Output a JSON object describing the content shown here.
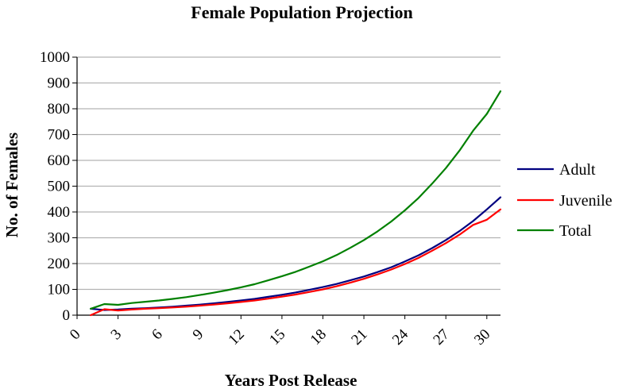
{
  "chart_data": {
    "type": "line",
    "title": "Female Population Projection",
    "xlabel": "Years Post Release",
    "ylabel": "No. of Females",
    "xlim": [
      0,
      31
    ],
    "ylim": [
      0,
      1000
    ],
    "x_ticks": [
      "0",
      "3",
      "6",
      "9",
      "12",
      "15",
      "18",
      "21",
      "24",
      "27",
      "30"
    ],
    "y_ticks": [
      "0",
      "100",
      "200",
      "300",
      "400",
      "500",
      "600",
      "700",
      "800",
      "900",
      "1000"
    ],
    "grid": true,
    "legend_position": "right",
    "x": [
      1,
      2,
      3,
      4,
      5,
      6,
      7,
      8,
      9,
      10,
      11,
      12,
      13,
      14,
      15,
      16,
      17,
      18,
      19,
      20,
      21,
      22,
      23,
      24,
      25,
      26,
      27,
      28,
      29,
      30,
      31
    ],
    "series": [
      {
        "name": "Adult",
        "color": "#000080",
        "values": [
          25,
          20,
          22,
          25,
          27,
          30,
          33,
          37,
          41,
          46,
          51,
          57,
          63,
          71,
          79,
          88,
          98,
          109,
          121,
          135,
          150,
          167,
          186,
          208,
          232,
          260,
          291,
          326,
          365,
          410,
          457
        ]
      },
      {
        "name": "Juvenile",
        "color": "#ff0000",
        "values": [
          0,
          23,
          18,
          22,
          25,
          27,
          30,
          33,
          37,
          41,
          46,
          51,
          57,
          64,
          72,
          80,
          90,
          100,
          112,
          126,
          141,
          158,
          177,
          198,
          222,
          250,
          279,
          312,
          350,
          370,
          410
        ]
      },
      {
        "name": "Total",
        "color": "#008000",
        "values": [
          25,
          43,
          40,
          47,
          52,
          57,
          63,
          70,
          78,
          87,
          97,
          108,
          120,
          135,
          151,
          168,
          188,
          209,
          233,
          261,
          291,
          325,
          363,
          406,
          454,
          510,
          570,
          638,
          715,
          780,
          868
        ]
      }
    ]
  }
}
